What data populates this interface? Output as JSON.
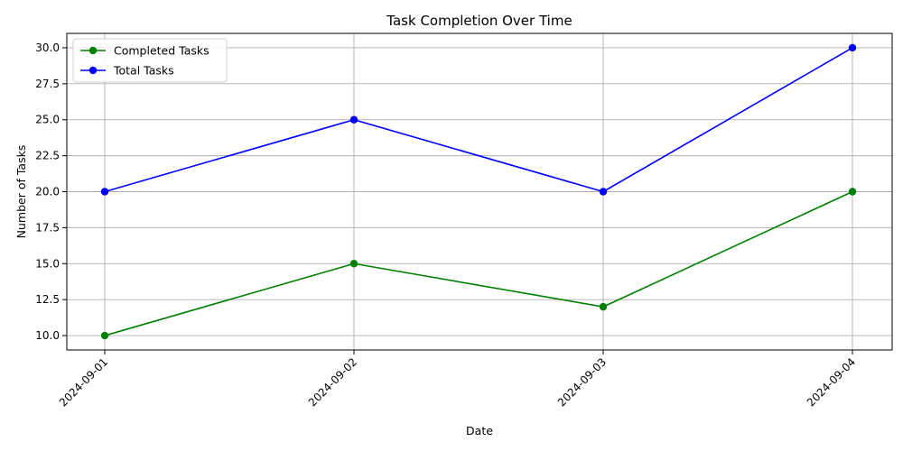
{
  "chart_data": {
    "type": "line",
    "title": "Task Completion Over Time",
    "xlabel": "Date",
    "ylabel": "Number of Tasks",
    "categories": [
      "2024-09-01",
      "2024-09-02",
      "2024-09-03",
      "2024-09-04"
    ],
    "series": [
      {
        "name": "Completed Tasks",
        "values": [
          10,
          15,
          12,
          20
        ],
        "color": "#008000"
      },
      {
        "name": "Total Tasks",
        "values": [
          20,
          25,
          20,
          30
        ],
        "color": "#0000ff"
      }
    ],
    "ylim": [
      9.0,
      31.0
    ],
    "yticks": [
      10.0,
      12.5,
      15.0,
      17.5,
      20.0,
      22.5,
      25.0,
      27.5,
      30.0
    ],
    "ytick_labels": [
      "10.0",
      "12.5",
      "15.0",
      "17.5",
      "20.0",
      "22.5",
      "25.0",
      "27.5",
      "30.0"
    ],
    "grid": true,
    "legend": "upper-left",
    "marker": "circle"
  }
}
